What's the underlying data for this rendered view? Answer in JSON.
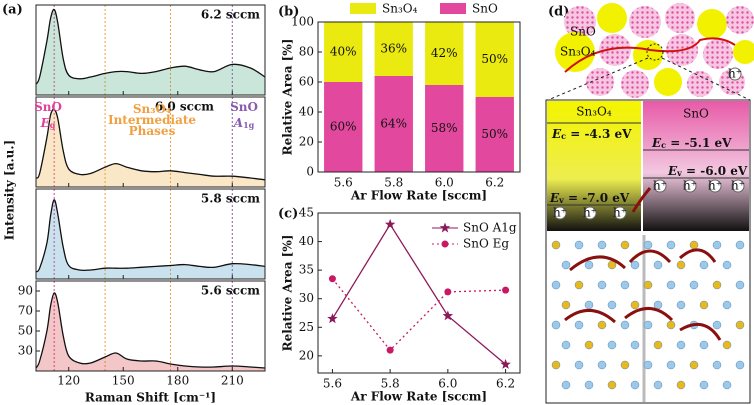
{
  "chart_data": [
    {
      "type": "spectra",
      "label": "(a)",
      "xlabel": "Raman Shift [cm⁻¹]",
      "ylabel": "Intensity [a.u.]",
      "xlim": [
        102,
        228
      ],
      "xticks": [
        120,
        150,
        180,
        210
      ],
      "vlines": [
        {
          "x": 112,
          "color": "#e0409a"
        },
        {
          "x": 140,
          "color": "#f0a040"
        },
        {
          "x": 176,
          "color": "#f0a040"
        },
        {
          "x": 210,
          "color": "#8a5ab0"
        }
      ],
      "panels": [
        {
          "name": "6.2 sccm",
          "color": "#2a9a6a",
          "ylim": [
            0,
            100
          ],
          "x": [
            102,
            104,
            108,
            110,
            112,
            114,
            117,
            120,
            126,
            132,
            140,
            146,
            152,
            160,
            168,
            176,
            184,
            192,
            200,
            210,
            220,
            228
          ],
          "values": [
            12,
            20,
            60,
            85,
            95,
            80,
            40,
            22,
            18,
            20,
            24,
            26,
            26,
            24,
            26,
            30,
            32,
            28,
            26,
            34,
            30,
            20
          ]
        },
        {
          "name": "6.0 sccm",
          "color": "#e8a020",
          "ylim": [
            0,
            100
          ],
          "x": [
            102,
            104,
            108,
            110,
            112,
            114,
            117,
            120,
            126,
            132,
            140,
            146,
            152,
            160,
            168,
            176,
            184,
            192,
            200,
            210,
            220,
            228
          ],
          "values": [
            10,
            15,
            55,
            80,
            86,
            76,
            40,
            20,
            14,
            15,
            22,
            26,
            22,
            18,
            17,
            18,
            16,
            14,
            12,
            12,
            10,
            8
          ]
        },
        {
          "name": "5.8 sccm",
          "color": "#2a8ab8",
          "ylim": [
            0,
            100
          ],
          "x": [
            102,
            104,
            108,
            110,
            112,
            114,
            117,
            120,
            126,
            132,
            140,
            146,
            152,
            160,
            168,
            176,
            184,
            192,
            200,
            210,
            220,
            228
          ],
          "values": [
            8,
            12,
            40,
            70,
            88,
            72,
            35,
            15,
            10,
            10,
            12,
            12,
            12,
            13,
            14,
            15,
            16,
            14,
            13,
            17,
            16,
            14
          ]
        },
        {
          "name": "5.6 sccm",
          "color": "#d02020",
          "ylim": [
            10,
            100
          ],
          "yticks": [
            30,
            50,
            70,
            90
          ],
          "x": [
            102,
            104,
            108,
            110,
            112,
            114,
            117,
            120,
            126,
            132,
            140,
            146,
            152,
            160,
            168,
            176,
            184,
            192,
            200,
            210,
            220,
            228
          ],
          "values": [
            13,
            20,
            50,
            75,
            88,
            78,
            45,
            25,
            18,
            18,
            24,
            28,
            22,
            20,
            20,
            17,
            15,
            14,
            14,
            15,
            14,
            13
          ]
        }
      ],
      "annotations": [
        {
          "text": "SnO",
          "color": "#e0409a"
        },
        {
          "text": "E",
          "sub": "g",
          "color": "#e0409a"
        },
        {
          "text": "Sn₃O₄",
          "color": "#f0a040"
        },
        {
          "text": "Intermediate",
          "color": "#f0a040"
        },
        {
          "text": "Phases",
          "color": "#f0a040"
        },
        {
          "text": "SnO",
          "color": "#8a5ab0"
        },
        {
          "text": "A",
          "sub": "1g",
          "color": "#8a5ab0"
        }
      ]
    },
    {
      "type": "stacked-bar",
      "label": "(b)",
      "xlabel": "Ar Flow Rate [sccm]",
      "ylabel": "Relative Area [%]",
      "categories": [
        "5.6",
        "5.8",
        "6.0",
        "6.2"
      ],
      "ylim": [
        0,
        100
      ],
      "yticks": [
        0,
        20,
        40,
        60,
        80,
        100
      ],
      "series": [
        {
          "name": "SnO",
          "color": "#e2489e",
          "values": [
            60,
            64,
            58,
            50
          ],
          "value_labels": [
            "60%",
            "64%",
            "58%",
            "50%"
          ]
        },
        {
          "name": "Sn₃O₄",
          "color": "#eaea10",
          "values": [
            40,
            36,
            42,
            50
          ],
          "value_labels": [
            "40%",
            "36%",
            "42%",
            "50%"
          ]
        }
      ]
    },
    {
      "type": "line",
      "label": "(c)",
      "xlabel": "Ar Flow Rate [sccm]",
      "ylabel": "Relative Area [%]",
      "x": [
        5.6,
        5.8,
        6.0,
        6.2
      ],
      "xlim": [
        5.55,
        6.25
      ],
      "xticks": [
        5.6,
        5.8,
        {
          "value": 6,
          "label": "6.0"
        },
        6.2
      ],
      "ylim": [
        17,
        45
      ],
      "yticks": [
        20,
        25,
        30,
        35,
        40,
        45
      ],
      "series": [
        {
          "name": "SnO A1g",
          "color": "#8c1a5a",
          "marker": "star",
          "dash": false,
          "values": [
            26.5,
            43,
            27,
            18.5
          ]
        },
        {
          "name": "SnO Eg",
          "color": "#c81a64",
          "marker": "circle",
          "dash": true,
          "values": [
            33.5,
            21,
            31.2,
            31.5
          ]
        }
      ]
    }
  ],
  "diagram": {
    "label": "(d)",
    "top_labels": [
      "SnO",
      "Sn₃O₄"
    ],
    "left_phase": "Sn₃O₄",
    "right_phase": "SnO",
    "levels": [
      {
        "e": "E",
        "sub": "c",
        "rest": " = -4.3 eV"
      },
      {
        "e": "E",
        "sub": "c",
        "rest": " = -5.1 eV"
      },
      {
        "e": "E",
        "sub": "v",
        "rest": " = -6.0 eV"
      },
      {
        "e": "E",
        "sub": "v",
        "rest": " = -7.0 eV"
      }
    ],
    "hole": "h⁺"
  }
}
